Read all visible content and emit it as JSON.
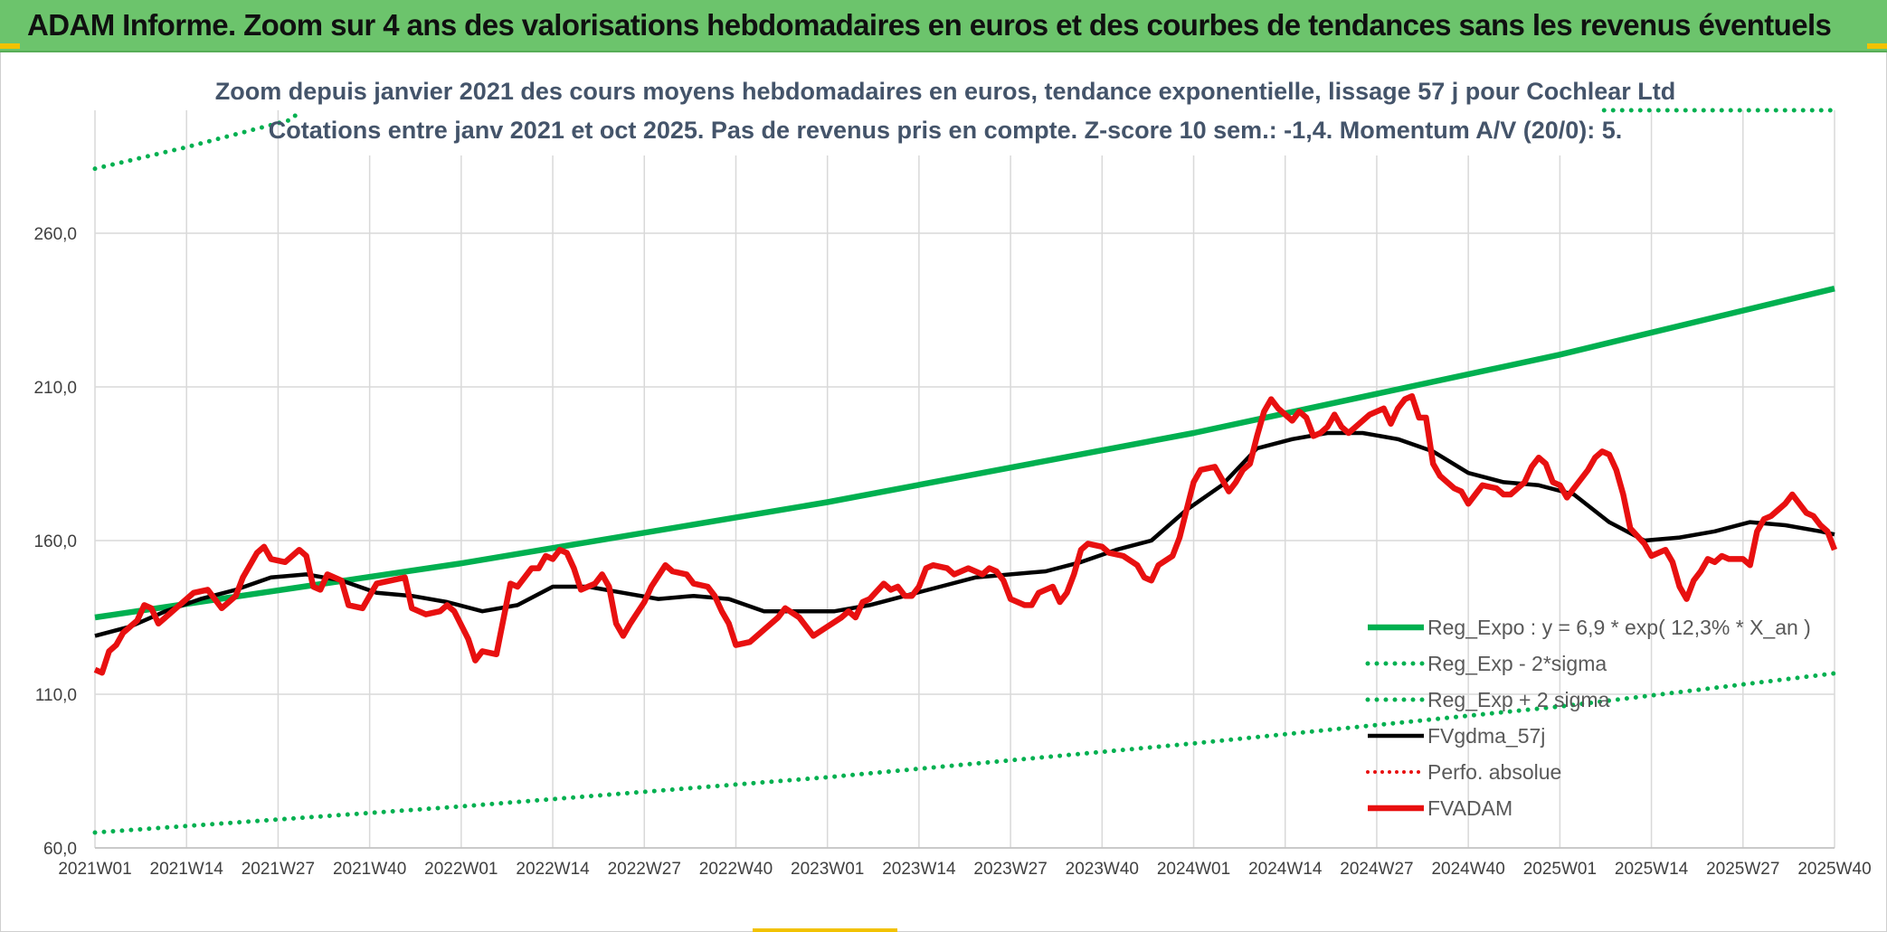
{
  "header": {
    "title": "ADAM Informe. Zoom sur 4 ans des valorisations hebdomadaires en euros et des courbes de tendances sans les revenus éventuels"
  },
  "colors": {
    "header_bg": "#6cc46c",
    "reg_expo": "#00b050",
    "sigma_bands": "#00b050",
    "fvgdma": "#000000",
    "perfo": "#e81010",
    "fvadam": "#e81010",
    "grid": "#d9d9d9"
  },
  "chart_data": {
    "type": "line",
    "title": "Zoom depuis janvier 2021 des cours moyens hebdomadaires en euros, tendance exponentielle, lissage 57 j pour Cochlear Ltd",
    "subtitle": "Cotations entre janv 2021 et oct 2025. Pas de revenus pris en compte. Z-score 10 sem.: -1,4. Momentum A/V (20/0): 5.",
    "xlabel": "",
    "ylabel": "",
    "ylim": [
      60,
      300
    ],
    "x_range": [
      0,
      247
    ],
    "grid": true,
    "legend_position": "bottom-right",
    "y_ticks": [
      {
        "value": 60,
        "label": "60,0"
      },
      {
        "value": 110,
        "label": "110,0"
      },
      {
        "value": 160,
        "label": "160,0"
      },
      {
        "value": 210,
        "label": "210,0"
      },
      {
        "value": 260,
        "label": "260,0"
      }
    ],
    "x_ticks": [
      {
        "value": 0,
        "label": "2021W01"
      },
      {
        "value": 13,
        "label": "2021W14"
      },
      {
        "value": 26,
        "label": "2021W27"
      },
      {
        "value": 39,
        "label": "2021W40"
      },
      {
        "value": 52,
        "label": "2022W01"
      },
      {
        "value": 65,
        "label": "2022W14"
      },
      {
        "value": 78,
        "label": "2022W27"
      },
      {
        "value": 91,
        "label": "2022W40"
      },
      {
        "value": 104,
        "label": "2023W01"
      },
      {
        "value": 117,
        "label": "2023W14"
      },
      {
        "value": 130,
        "label": "2023W27"
      },
      {
        "value": 143,
        "label": "2023W40"
      },
      {
        "value": 156,
        "label": "2024W01"
      },
      {
        "value": 169,
        "label": "2024W14"
      },
      {
        "value": 182,
        "label": "2024W27"
      },
      {
        "value": 195,
        "label": "2024W40"
      },
      {
        "value": 208,
        "label": "2025W01"
      },
      {
        "value": 221,
        "label": "2025W14"
      },
      {
        "value": 234,
        "label": "2025W27"
      },
      {
        "value": 247,
        "label": "2025W40"
      }
    ],
    "series": [
      {
        "name": "Reg_Expo : y = 6,9 * exp( 12,3% *  X_an )",
        "style": "solid-thick",
        "points": [
          [
            0,
            135.0
          ],
          [
            52,
            152.6
          ],
          [
            104,
            172.5
          ],
          [
            156,
            195.0
          ],
          [
            208,
            220.5
          ],
          [
            247,
            242.0
          ]
        ]
      },
      {
        "name": "Reg_Exp - 2*sigma",
        "style": "dotted",
        "points": [
          [
            0,
            65.0
          ],
          [
            52,
            73.5
          ],
          [
            104,
            83.0
          ],
          [
            156,
            94.0
          ],
          [
            208,
            106.0
          ],
          [
            247,
            116.8
          ]
        ]
      },
      {
        "name": "Reg_Exp + 2 sigma",
        "style": "dotted",
        "points": [
          [
            0,
            281.0
          ],
          [
            13,
            288.0
          ],
          [
            28,
            297.0
          ],
          [
            29,
            300.0
          ],
          [
            210,
            300.0
          ],
          [
            247,
            300.0
          ]
        ]
      },
      {
        "name": "FVgdma_57j",
        "style": "solid-medium",
        "points": [
          [
            0,
            129
          ],
          [
            5,
            132
          ],
          [
            10,
            137
          ],
          [
            15,
            141
          ],
          [
            20,
            144
          ],
          [
            25,
            148
          ],
          [
            30,
            149
          ],
          [
            35,
            147
          ],
          [
            40,
            143
          ],
          [
            45,
            142
          ],
          [
            50,
            140
          ],
          [
            55,
            137
          ],
          [
            60,
            139
          ],
          [
            65,
            145
          ],
          [
            70,
            145
          ],
          [
            75,
            143
          ],
          [
            80,
            141
          ],
          [
            85,
            142
          ],
          [
            90,
            141
          ],
          [
            95,
            137
          ],
          [
            100,
            137
          ],
          [
            105,
            137
          ],
          [
            110,
            139
          ],
          [
            115,
            142
          ],
          [
            120,
            145
          ],
          [
            125,
            148
          ],
          [
            130,
            149
          ],
          [
            135,
            150
          ],
          [
            140,
            153
          ],
          [
            145,
            157
          ],
          [
            150,
            160
          ],
          [
            155,
            170
          ],
          [
            160,
            178
          ],
          [
            165,
            190
          ],
          [
            170,
            193
          ],
          [
            175,
            195
          ],
          [
            180,
            195
          ],
          [
            185,
            193
          ],
          [
            190,
            189
          ],
          [
            195,
            182
          ],
          [
            200,
            179
          ],
          [
            205,
            178
          ],
          [
            210,
            175
          ],
          [
            215,
            166
          ],
          [
            220,
            160
          ],
          [
            225,
            161
          ],
          [
            230,
            163
          ],
          [
            235,
            166
          ],
          [
            240,
            165
          ],
          [
            245,
            163
          ],
          [
            247,
            162
          ]
        ]
      },
      {
        "name": "Perfo. absolue",
        "style": "dotted-red",
        "points": []
      },
      {
        "name": "FVADAM",
        "style": "solid-thick-red",
        "points": [
          [
            0,
            118
          ],
          [
            1,
            117
          ],
          [
            2,
            124
          ],
          [
            3,
            126
          ],
          [
            4,
            130
          ],
          [
            6,
            134
          ],
          [
            7,
            139
          ],
          [
            8,
            138
          ],
          [
            9,
            133
          ],
          [
            10,
            135
          ],
          [
            12,
            139
          ],
          [
            14,
            143
          ],
          [
            16,
            144
          ],
          [
            17,
            141
          ],
          [
            18,
            138
          ],
          [
            20,
            142
          ],
          [
            21,
            148
          ],
          [
            23,
            156
          ],
          [
            24,
            158
          ],
          [
            25,
            154
          ],
          [
            27,
            153
          ],
          [
            29,
            157
          ],
          [
            30,
            155
          ],
          [
            31,
            145
          ],
          [
            32,
            144
          ],
          [
            33,
            149
          ],
          [
            35,
            147
          ],
          [
            36,
            139
          ],
          [
            38,
            138
          ],
          [
            40,
            146
          ],
          [
            42,
            147
          ],
          [
            44,
            148
          ],
          [
            45,
            138
          ],
          [
            47,
            136
          ],
          [
            49,
            137
          ],
          [
            50,
            139
          ],
          [
            51,
            137
          ],
          [
            53,
            128
          ],
          [
            54,
            121
          ],
          [
            55,
            124
          ],
          [
            57,
            123
          ],
          [
            59,
            146
          ],
          [
            60,
            145
          ],
          [
            62,
            151
          ],
          [
            63,
            151
          ],
          [
            64,
            155
          ],
          [
            65,
            154
          ],
          [
            66,
            157
          ],
          [
            67,
            156
          ],
          [
            68,
            151
          ],
          [
            69,
            144
          ],
          [
            71,
            146
          ],
          [
            72,
            149
          ],
          [
            73,
            145
          ],
          [
            74,
            133
          ],
          [
            75,
            129
          ],
          [
            76,
            133
          ],
          [
            78,
            140
          ],
          [
            79,
            145
          ],
          [
            81,
            152
          ],
          [
            82,
            150
          ],
          [
            84,
            149
          ],
          [
            85,
            146
          ],
          [
            87,
            145
          ],
          [
            88,
            142
          ],
          [
            89,
            137
          ],
          [
            90,
            133
          ],
          [
            91,
            126
          ],
          [
            93,
            127
          ],
          [
            95,
            131
          ],
          [
            97,
            135
          ],
          [
            98,
            138
          ],
          [
            100,
            135
          ],
          [
            101,
            132
          ],
          [
            102,
            129
          ],
          [
            104,
            132
          ],
          [
            106,
            135
          ],
          [
            107,
            137
          ],
          [
            108,
            135
          ],
          [
            109,
            140
          ],
          [
            110,
            141
          ],
          [
            112,
            146
          ],
          [
            113,
            144
          ],
          [
            114,
            145
          ],
          [
            115,
            142
          ],
          [
            116,
            142
          ],
          [
            117,
            145
          ],
          [
            118,
            151
          ],
          [
            119,
            152
          ],
          [
            121,
            151
          ],
          [
            122,
            149
          ],
          [
            124,
            151
          ],
          [
            126,
            149
          ],
          [
            127,
            151
          ],
          [
            128,
            150
          ],
          [
            129,
            147
          ],
          [
            130,
            141
          ],
          [
            132,
            139
          ],
          [
            133,
            139
          ],
          [
            134,
            143
          ],
          [
            136,
            145
          ],
          [
            137,
            140
          ],
          [
            138,
            143
          ],
          [
            139,
            149
          ],
          [
            140,
            157
          ],
          [
            141,
            159
          ],
          [
            143,
            158
          ],
          [
            144,
            156
          ],
          [
            146,
            155
          ],
          [
            148,
            152
          ],
          [
            149,
            148
          ],
          [
            150,
            147
          ],
          [
            151,
            152
          ],
          [
            153,
            155
          ],
          [
            154,
            161
          ],
          [
            155,
            170
          ],
          [
            156,
            179
          ],
          [
            157,
            183
          ],
          [
            159,
            184
          ],
          [
            160,
            180
          ],
          [
            161,
            176
          ],
          [
            162,
            179
          ],
          [
            163,
            183
          ],
          [
            164,
            185
          ],
          [
            165,
            194
          ],
          [
            166,
            202
          ],
          [
            167,
            206
          ],
          [
            168,
            203
          ],
          [
            170,
            199
          ],
          [
            171,
            202
          ],
          [
            172,
            200
          ],
          [
            173,
            194
          ],
          [
            174,
            195
          ],
          [
            175,
            197
          ],
          [
            176,
            201
          ],
          [
            177,
            197
          ],
          [
            178,
            195
          ],
          [
            179,
            197
          ],
          [
            181,
            201
          ],
          [
            183,
            203
          ],
          [
            184,
            198
          ],
          [
            185,
            203
          ],
          [
            186,
            206
          ],
          [
            187,
            207
          ],
          [
            188,
            200
          ],
          [
            189,
            200
          ],
          [
            190,
            185
          ],
          [
            191,
            181
          ],
          [
            193,
            177
          ],
          [
            194,
            176
          ],
          [
            195,
            172
          ],
          [
            196,
            175
          ],
          [
            197,
            178
          ],
          [
            199,
            177
          ],
          [
            200,
            175
          ],
          [
            201,
            175
          ],
          [
            202,
            177
          ],
          [
            203,
            179
          ],
          [
            204,
            184
          ],
          [
            205,
            187
          ],
          [
            206,
            185
          ],
          [
            207,
            179
          ],
          [
            208,
            178
          ],
          [
            209,
            174
          ],
          [
            210,
            177
          ],
          [
            212,
            183
          ],
          [
            213,
            187
          ],
          [
            214,
            189
          ],
          [
            215,
            188
          ],
          [
            216,
            183
          ],
          [
            217,
            175
          ],
          [
            218,
            164
          ],
          [
            220,
            159
          ],
          [
            221,
            155
          ],
          [
            223,
            157
          ],
          [
            224,
            153
          ],
          [
            225,
            145
          ],
          [
            226,
            141
          ],
          [
            227,
            147
          ],
          [
            228,
            150
          ],
          [
            229,
            154
          ],
          [
            230,
            153
          ],
          [
            231,
            155
          ],
          [
            232,
            154
          ],
          [
            234,
            154
          ],
          [
            235,
            152
          ],
          [
            236,
            163
          ],
          [
            237,
            167
          ],
          [
            238,
            168
          ],
          [
            239,
            170
          ],
          [
            240,
            172
          ],
          [
            241,
            175
          ],
          [
            242,
            172
          ],
          [
            243,
            169
          ],
          [
            244,
            168
          ],
          [
            245,
            165
          ],
          [
            246,
            163
          ],
          [
            247,
            157
          ]
        ]
      }
    ]
  }
}
